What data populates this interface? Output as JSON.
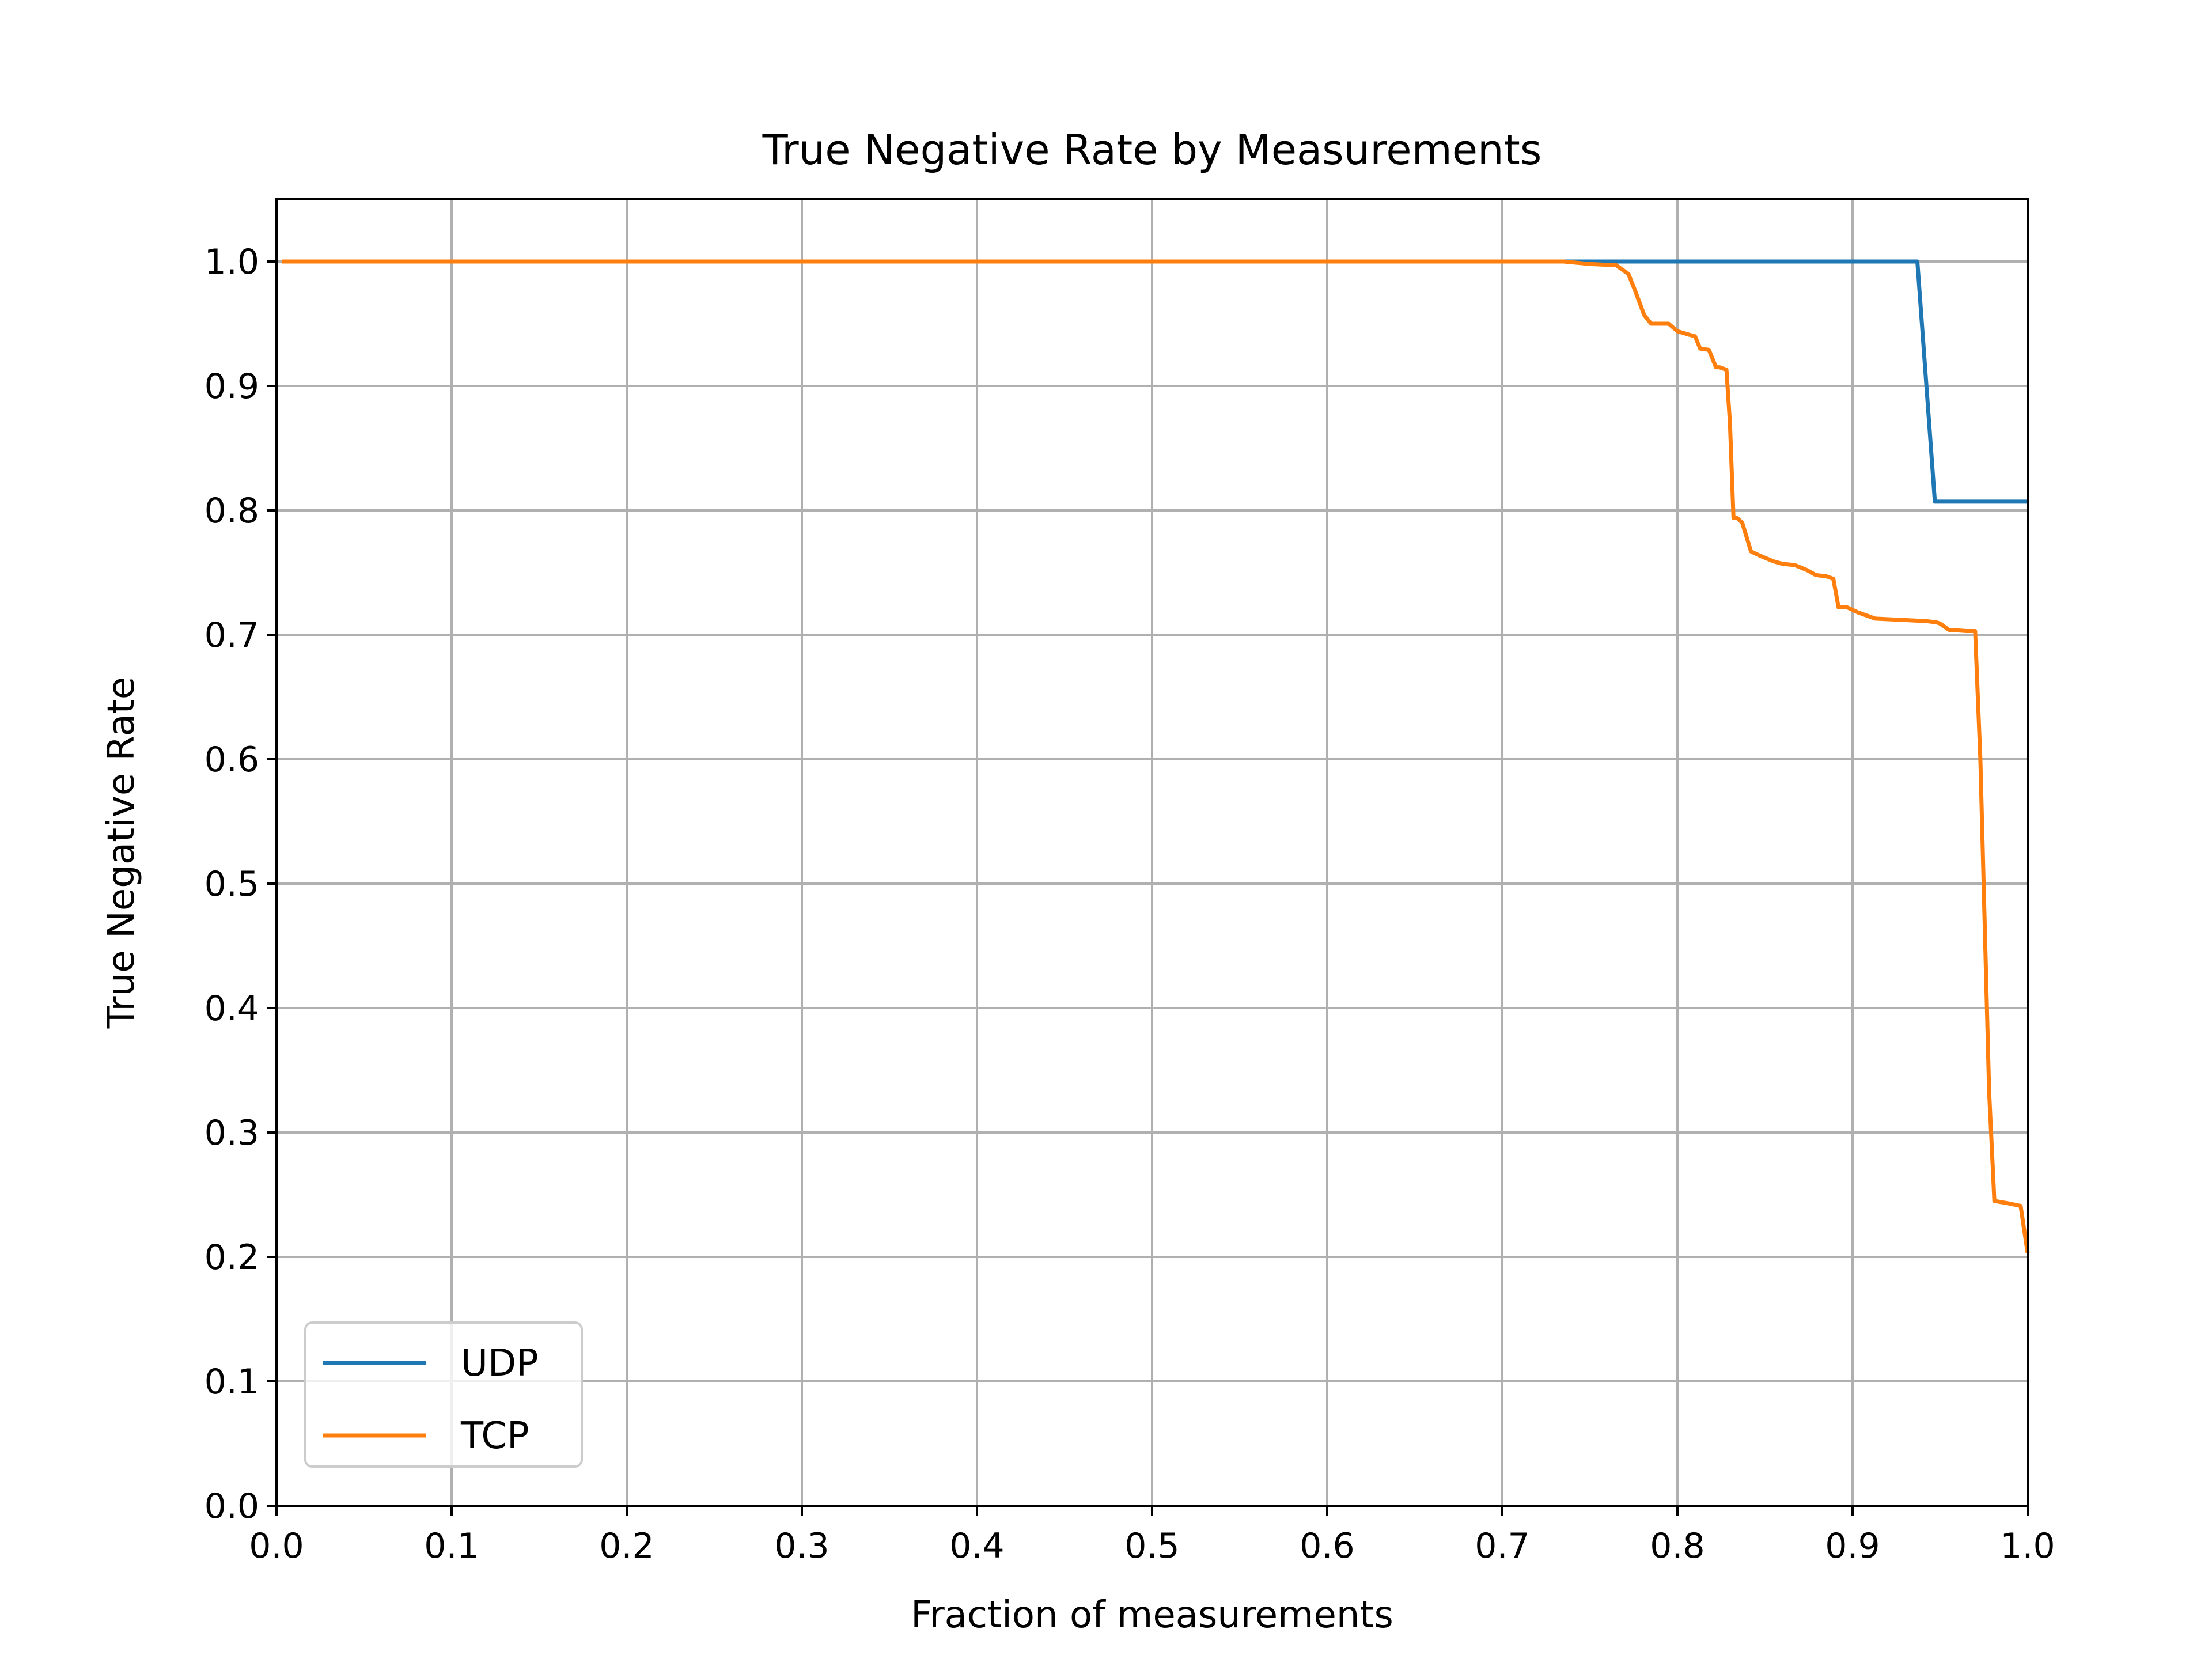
{
  "chart_data": {
    "type": "line",
    "title": "True Negative Rate by Measurements",
    "xlabel": "Fraction of measurements",
    "ylabel": "True Negative Rate",
    "xlim": [
      0.0,
      1.0
    ],
    "ylim": [
      0.0,
      1.05
    ],
    "xticks": [
      0.0,
      0.1,
      0.2,
      0.3,
      0.4,
      0.5,
      0.6,
      0.7,
      0.8,
      0.9,
      1.0
    ],
    "yticks": [
      0.0,
      0.1,
      0.2,
      0.3,
      0.4,
      0.5,
      0.6,
      0.7,
      0.8,
      0.9,
      1.0
    ],
    "xtick_labels": [
      "0.0",
      "0.1",
      "0.2",
      "0.3",
      "0.4",
      "0.5",
      "0.6",
      "0.7",
      "0.8",
      "0.9",
      "1.0"
    ],
    "ytick_labels": [
      "0.0",
      "0.1",
      "0.2",
      "0.3",
      "0.4",
      "0.5",
      "0.6",
      "0.7",
      "0.8",
      "0.9",
      "1.0"
    ],
    "grid": true,
    "legend": "lower-left",
    "series": [
      {
        "name": "UDP",
        "color": "#1f77b4",
        "x": [
          0.003,
          0.72,
          0.8,
          0.9,
          0.937,
          0.947,
          1.0
        ],
        "y": [
          1.0,
          1.0,
          1.0,
          1.0,
          1.0,
          0.807,
          0.807
        ]
      },
      {
        "name": "TCP",
        "color": "#ff7f0e",
        "x": [
          0.003,
          0.7,
          0.735,
          0.75,
          0.765,
          0.772,
          0.776,
          0.781,
          0.785,
          0.795,
          0.8,
          0.807,
          0.81,
          0.813,
          0.818,
          0.822,
          0.824,
          0.828,
          0.83,
          0.832,
          0.834,
          0.837,
          0.842,
          0.848,
          0.855,
          0.86,
          0.867,
          0.874,
          0.879,
          0.885,
          0.889,
          0.892,
          0.897,
          0.903,
          0.913,
          0.928,
          0.942,
          0.948,
          0.95,
          0.955,
          0.965,
          0.97,
          0.973,
          0.978,
          0.981,
          0.989,
          0.996,
          1.0
        ],
        "y": [
          1.0,
          1.0,
          1.0,
          0.998,
          0.997,
          0.99,
          0.976,
          0.957,
          0.95,
          0.95,
          0.944,
          0.941,
          0.94,
          0.93,
          0.929,
          0.915,
          0.915,
          0.913,
          0.87,
          0.794,
          0.794,
          0.79,
          0.767,
          0.763,
          0.759,
          0.757,
          0.756,
          0.752,
          0.748,
          0.747,
          0.745,
          0.722,
          0.722,
          0.718,
          0.713,
          0.712,
          0.711,
          0.71,
          0.709,
          0.704,
          0.703,
          0.703,
          0.6,
          0.333,
          0.245,
          0.243,
          0.241,
          0.203
        ]
      }
    ]
  }
}
